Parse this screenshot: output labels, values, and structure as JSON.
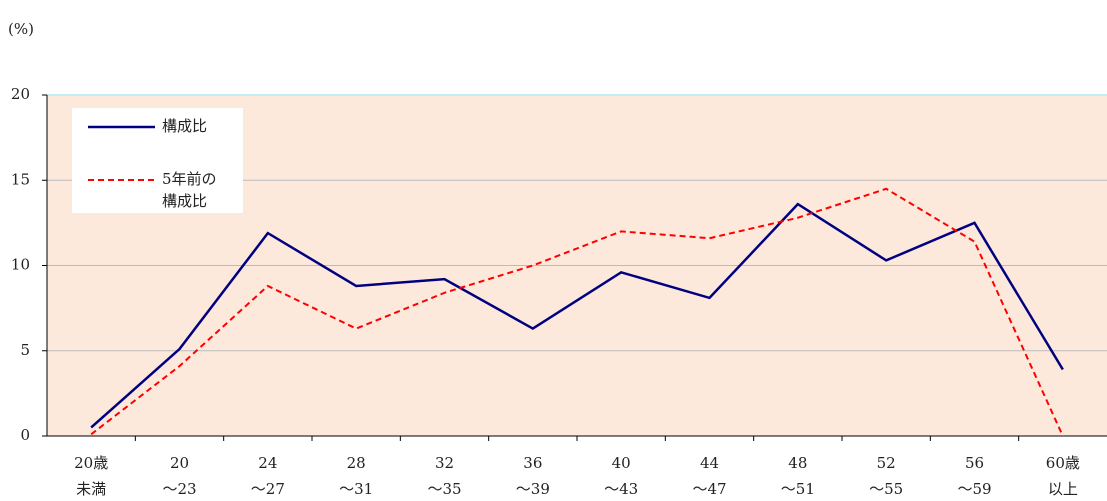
{
  "chart_data": {
    "type": "line",
    "unit_label": "(%)",
    "categories": [
      [
        "20歳",
        "未満"
      ],
      [
        "20",
        "～23"
      ],
      [
        "24",
        "～27"
      ],
      [
        "28",
        "～31"
      ],
      [
        "32",
        "～35"
      ],
      [
        "36",
        "～39"
      ],
      [
        "40",
        "～43"
      ],
      [
        "44",
        "～47"
      ],
      [
        "48",
        "～51"
      ],
      [
        "52",
        "～55"
      ],
      [
        "56",
        "～59"
      ],
      [
        "60歳",
        "以上"
      ]
    ],
    "series": [
      {
        "name": "構成比",
        "color": "#000080",
        "dash": false,
        "values": [
          0.5,
          5.1,
          11.9,
          8.8,
          9.2,
          6.3,
          9.6,
          8.1,
          13.6,
          10.3,
          12.5,
          3.9
        ]
      },
      {
        "name": [
          "5年前の",
          "構成比"
        ],
        "color": "#ff0000",
        "dash": true,
        "values": [
          0.1,
          4.1,
          8.8,
          6.3,
          8.4,
          10.0,
          12.0,
          11.6,
          12.8,
          14.5,
          11.4,
          0.0
        ]
      }
    ],
    "ylim": [
      0,
      20
    ],
    "yticks": [
      0,
      5,
      10,
      15,
      20
    ],
    "grid": true,
    "legend": "upper left"
  }
}
